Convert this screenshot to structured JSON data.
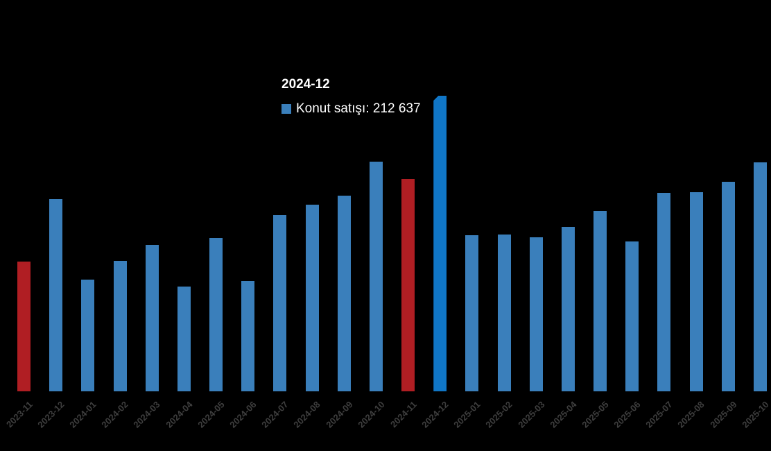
{
  "background": "#000000",
  "tooltip": {
    "title": "2024-12",
    "series_label": "Konut satışı",
    "value": "212 637",
    "line": "Konut satışı: 212 637",
    "text_color": "#ffffff",
    "swatch_color": "#3a7fbb"
  },
  "chart_data": {
    "type": "bar",
    "title": "",
    "xlabel": "",
    "ylabel": "",
    "grid": false,
    "legend": "hidden",
    "ylim": [
      0,
      220000
    ],
    "categories": [
      "2023-11",
      "2023-12",
      "2024-01",
      "2024-02",
      "2024-03",
      "2024-04",
      "2024-05",
      "2024-06",
      "2024-07",
      "2024-08",
      "2024-09",
      "2024-10",
      "2024-11",
      "2024-12",
      "2025-01",
      "2025-02",
      "2025-03",
      "2025-04",
      "2025-05",
      "2025-06",
      "2025-07",
      "2025-08",
      "2025-09",
      "2025-10"
    ],
    "series": [
      {
        "name": "Konut satışı",
        "values": [
          93178,
          138577,
          80308,
          93902,
          105476,
          75569,
          110588,
          79313,
          127088,
          134155,
          140919,
          165138,
          153014,
          212637,
          112173,
          112818,
          110795,
          118359,
          130025,
          107723,
          142858,
          143319,
          150657,
          165000
        ]
      }
    ],
    "bar_color": "#3a7fbb",
    "hover_bar_color": "#1076c6",
    "red_bar_color": "#b01e23",
    "red_categories": [
      "2023-11",
      "2024-11"
    ],
    "hovered_category": "2024-12",
    "axis_label_color": "#3e3e3e"
  }
}
